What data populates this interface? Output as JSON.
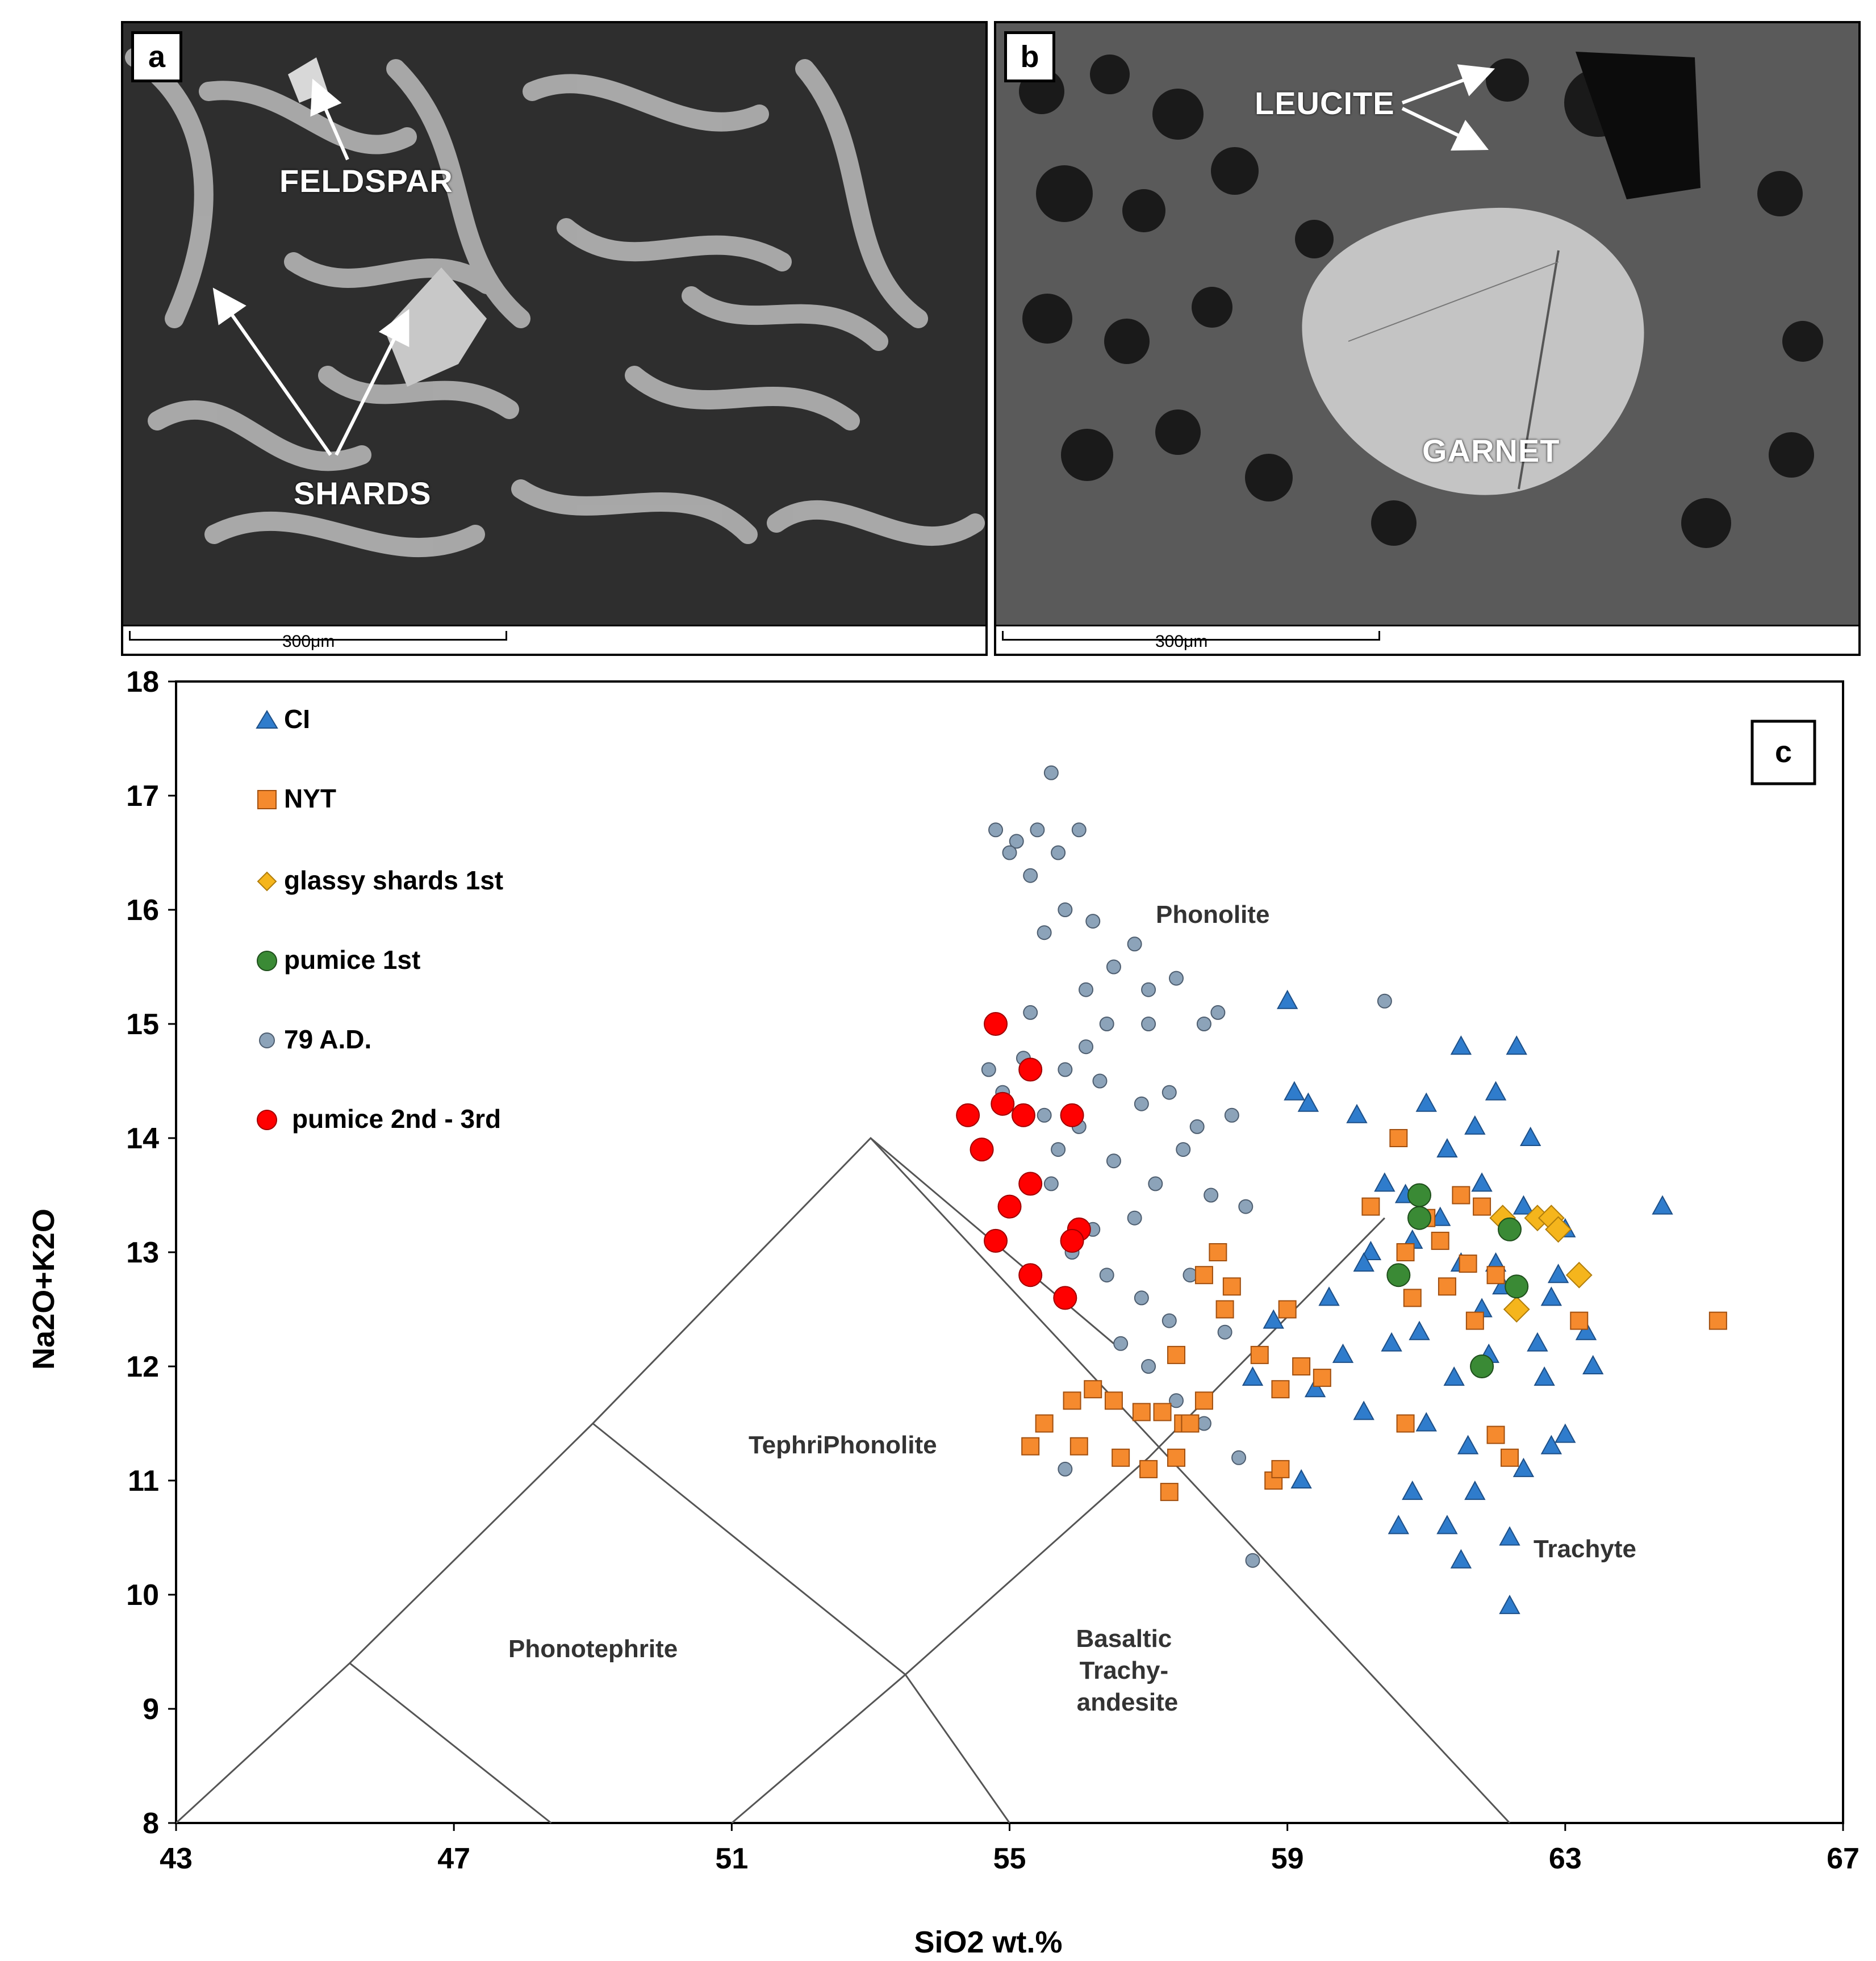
{
  "panel_a": {
    "letter": "a",
    "labels": {
      "feldspar": "FELDSPAR",
      "shards": "SHARDS"
    },
    "scale": "300μm"
  },
  "panel_b": {
    "letter": "b",
    "labels": {
      "leucite": "LEUCITE",
      "garnet": "GARNET"
    },
    "scale": "300μm"
  },
  "chart_data": {
    "type": "scatter",
    "panel_letter": "c",
    "xlabel": "SiO2 wt.%",
    "ylabel": "Na2O+K2O",
    "xlim": [
      43,
      67
    ],
    "ylim": [
      8,
      18
    ],
    "xticks": [
      43,
      47,
      51,
      55,
      59,
      63,
      67
    ],
    "yticks": [
      8,
      9,
      10,
      11,
      12,
      13,
      14,
      15,
      16,
      17,
      18
    ],
    "legend": [
      "CI",
      "NYT",
      "glassy shards 1st",
      "pumice 1st",
      "79 A.D.",
      "pumice 2nd - 3rd"
    ],
    "field_labels": [
      "Phonolite",
      "TephriPhonolite",
      "Phonotephrite",
      "Basaltic Trachy- andesite",
      "Trachyte"
    ],
    "field_boundaries": [
      [
        [
          43,
          8
        ],
        [
          45.5,
          9.4
        ],
        [
          49,
          11.5
        ],
        [
          53,
          14
        ],
        [
          56.5,
          12.2
        ]
      ],
      [
        [
          45.5,
          9.4
        ],
        [
          48.4,
          8
        ]
      ],
      [
        [
          49,
          11.5
        ],
        [
          53.5,
          9.3
        ],
        [
          55,
          8
        ]
      ],
      [
        [
          51,
          8
        ],
        [
          53.5,
          9.3
        ],
        [
          57,
          11.2
        ],
        [
          60.4,
          13.3
        ]
      ],
      [
        [
          53,
          14
        ],
        [
          62.2,
          8
        ]
      ]
    ],
    "series": [
      {
        "name": "79 A.D.",
        "marker": "circle",
        "color": "#8ca3b9",
        "points": [
          [
            55.6,
            17.2
          ],
          [
            55.4,
            16.7
          ],
          [
            55.1,
            16.6
          ],
          [
            54.8,
            16.7
          ],
          [
            55.0,
            16.5
          ],
          [
            55.3,
            16.3
          ],
          [
            55.7,
            16.5
          ],
          [
            56.0,
            16.7
          ],
          [
            55.8,
            16.0
          ],
          [
            55.5,
            15.8
          ],
          [
            56.2,
            15.9
          ],
          [
            56.5,
            15.5
          ],
          [
            56.8,
            15.7
          ],
          [
            57.0,
            15.3
          ],
          [
            57.4,
            15.4
          ],
          [
            57.8,
            15.0
          ],
          [
            58.0,
            15.1
          ],
          [
            56.4,
            15.0
          ],
          [
            56.1,
            14.8
          ],
          [
            55.8,
            14.6
          ],
          [
            55.2,
            14.7
          ],
          [
            54.9,
            14.4
          ],
          [
            55.5,
            14.2
          ],
          [
            56.3,
            14.5
          ],
          [
            56.9,
            14.3
          ],
          [
            57.3,
            14.4
          ],
          [
            57.7,
            14.1
          ],
          [
            58.2,
            14.2
          ],
          [
            56.0,
            14.1
          ],
          [
            55.7,
            13.9
          ],
          [
            56.5,
            13.8
          ],
          [
            57.1,
            13.6
          ],
          [
            57.5,
            13.9
          ],
          [
            57.9,
            13.5
          ],
          [
            56.8,
            13.3
          ],
          [
            56.2,
            13.2
          ],
          [
            55.6,
            13.6
          ],
          [
            55.9,
            13.0
          ],
          [
            56.4,
            12.8
          ],
          [
            56.9,
            12.6
          ],
          [
            57.3,
            12.4
          ],
          [
            57.6,
            12.8
          ],
          [
            58.1,
            12.3
          ],
          [
            56.6,
            12.2
          ],
          [
            57.0,
            12.0
          ],
          [
            57.4,
            11.7
          ],
          [
            57.8,
            11.5
          ],
          [
            58.3,
            11.2
          ],
          [
            55.8,
            11.1
          ],
          [
            58.5,
            10.3
          ],
          [
            60.4,
            15.2
          ],
          [
            58.4,
            13.4
          ],
          [
            57.0,
            15.0
          ],
          [
            56.1,
            15.3
          ],
          [
            55.3,
            15.1
          ],
          [
            54.7,
            14.6
          ]
        ]
      },
      {
        "name": "pumice 2nd - 3rd",
        "marker": "circle",
        "color": "#ff0000",
        "points": [
          [
            54.8,
            15.0
          ],
          [
            55.3,
            14.6
          ],
          [
            54.4,
            14.2
          ],
          [
            54.9,
            14.3
          ],
          [
            55.2,
            14.2
          ],
          [
            55.9,
            14.2
          ],
          [
            54.6,
            13.9
          ],
          [
            55.3,
            13.6
          ],
          [
            55.0,
            13.4
          ],
          [
            56.0,
            13.2
          ],
          [
            55.9,
            13.1
          ],
          [
            54.8,
            13.1
          ],
          [
            55.3,
            12.8
          ],
          [
            55.8,
            12.6
          ]
        ]
      },
      {
        "name": "CI",
        "marker": "triangle",
        "color": "#2f7ccc",
        "points": [
          [
            59.0,
            15.2
          ],
          [
            61.5,
            14.8
          ],
          [
            62.3,
            14.8
          ],
          [
            59.3,
            14.3
          ],
          [
            59.1,
            14.4
          ],
          [
            60.0,
            14.2
          ],
          [
            61.0,
            14.3
          ],
          [
            62.0,
            14.4
          ],
          [
            62.5,
            14.0
          ],
          [
            61.3,
            13.9
          ],
          [
            60.7,
            13.5
          ],
          [
            61.8,
            13.6
          ],
          [
            62.4,
            13.4
          ],
          [
            63.0,
            13.2
          ],
          [
            64.4,
            13.4
          ],
          [
            60.2,
            13.0
          ],
          [
            61.5,
            12.9
          ],
          [
            62.1,
            12.7
          ],
          [
            62.8,
            12.6
          ],
          [
            63.3,
            12.3
          ],
          [
            59.6,
            12.6
          ],
          [
            58.8,
            12.4
          ],
          [
            60.5,
            12.2
          ],
          [
            61.9,
            12.1
          ],
          [
            62.7,
            11.9
          ],
          [
            63.4,
            12.0
          ],
          [
            58.5,
            11.9
          ],
          [
            59.4,
            11.8
          ],
          [
            60.1,
            11.6
          ],
          [
            61.0,
            11.5
          ],
          [
            61.6,
            11.3
          ],
          [
            62.4,
            11.1
          ],
          [
            63.0,
            11.4
          ],
          [
            62.8,
            11.3
          ],
          [
            59.2,
            11.0
          ],
          [
            60.8,
            10.9
          ],
          [
            61.7,
            10.9
          ],
          [
            61.3,
            10.6
          ],
          [
            60.6,
            10.6
          ],
          [
            62.2,
            10.5
          ],
          [
            61.5,
            10.3
          ],
          [
            62.2,
            9.9
          ],
          [
            60.1,
            12.9
          ],
          [
            61.2,
            13.3
          ],
          [
            62.6,
            12.2
          ],
          [
            61.8,
            12.5
          ],
          [
            60.9,
            12.3
          ],
          [
            59.8,
            12.1
          ],
          [
            61.4,
            11.9
          ],
          [
            62.0,
            12.9
          ],
          [
            60.4,
            13.6
          ],
          [
            61.7,
            14.1
          ],
          [
            60.8,
            13.1
          ],
          [
            62.9,
            12.8
          ]
        ]
      },
      {
        "name": "NYT",
        "marker": "square",
        "color": "#f58a2e",
        "points": [
          [
            60.6,
            14.0
          ],
          [
            60.2,
            13.4
          ],
          [
            61.0,
            13.3
          ],
          [
            61.5,
            13.5
          ],
          [
            61.8,
            13.4
          ],
          [
            61.2,
            13.1
          ],
          [
            60.7,
            13.0
          ],
          [
            61.6,
            12.9
          ],
          [
            62.0,
            12.8
          ],
          [
            61.3,
            12.7
          ],
          [
            60.8,
            12.6
          ],
          [
            61.7,
            12.4
          ],
          [
            63.2,
            12.4
          ],
          [
            65.2,
            12.4
          ],
          [
            58.0,
            13.0
          ],
          [
            57.8,
            12.8
          ],
          [
            58.2,
            12.7
          ],
          [
            58.1,
            12.5
          ],
          [
            59.0,
            12.5
          ],
          [
            58.6,
            12.1
          ],
          [
            59.2,
            12.0
          ],
          [
            59.5,
            11.9
          ],
          [
            58.9,
            11.8
          ],
          [
            57.4,
            12.1
          ],
          [
            57.8,
            11.7
          ],
          [
            57.5,
            11.5
          ],
          [
            57.2,
            11.6
          ],
          [
            56.9,
            11.6
          ],
          [
            56.5,
            11.7
          ],
          [
            56.2,
            11.8
          ],
          [
            55.9,
            11.7
          ],
          [
            55.5,
            11.5
          ],
          [
            55.3,
            11.3
          ],
          [
            56.0,
            11.3
          ],
          [
            56.6,
            11.2
          ],
          [
            57.0,
            11.1
          ],
          [
            57.4,
            11.2
          ],
          [
            58.8,
            11.0
          ],
          [
            58.9,
            11.1
          ],
          [
            62.0,
            11.4
          ],
          [
            62.2,
            11.2
          ],
          [
            60.7,
            11.5
          ],
          [
            57.3,
            10.9
          ],
          [
            57.6,
            11.5
          ]
        ]
      },
      {
        "name": "glassy shards 1st",
        "marker": "diamond",
        "color": "#f5b51c",
        "points": [
          [
            62.1,
            13.3
          ],
          [
            62.6,
            13.3
          ],
          [
            62.8,
            13.3
          ],
          [
            62.9,
            13.2
          ],
          [
            63.2,
            12.8
          ],
          [
            62.3,
            12.5
          ]
        ]
      },
      {
        "name": "pumice 1st",
        "marker": "circle",
        "color": "#3a8a35",
        "points": [
          [
            60.9,
            13.5
          ],
          [
            60.9,
            13.3
          ],
          [
            62.2,
            13.2
          ],
          [
            60.6,
            12.8
          ],
          [
            62.3,
            12.7
          ],
          [
            61.8,
            12.0
          ]
        ]
      }
    ]
  }
}
